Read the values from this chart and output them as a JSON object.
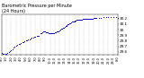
{
  "title": "Barometric Pressure per Minute\n(24 Hours)",
  "title_fontsize": 3.5,
  "dot_color": "#0000cc",
  "dot_size": 0.5,
  "background_color": "#ffffff",
  "grid_color": "#999999",
  "xlim": [
    0,
    1440
  ],
  "ylim": [
    29.55,
    30.28
  ],
  "yticks": [
    29.6,
    29.7,
    29.8,
    29.9,
    30.0,
    30.1,
    30.2
  ],
  "ytick_labels": [
    "29.6",
    "29.7",
    "29.8",
    "29.9",
    "30",
    "30.1",
    "30.2"
  ],
  "ytick_fontsize": 3.0,
  "xtick_fontsize": 2.5,
  "x_minutes": [
    0,
    60,
    120,
    180,
    240,
    300,
    360,
    420,
    480,
    540,
    600,
    660,
    720,
    780,
    840,
    900,
    960,
    1020,
    1080,
    1140,
    1200,
    1260,
    1320,
    1380,
    1440
  ],
  "xtick_labels": [
    "0:0",
    "1:0",
    "2:0",
    "3:0",
    "4:0",
    "5:0",
    "6:0",
    "7:0",
    "8:0",
    "9:0",
    "10:0",
    "11:0",
    "12:0",
    "13:0",
    "14:0",
    "15:0",
    "16:0",
    "17:0",
    "18:0",
    "19:0",
    "20:0",
    "21:0",
    "22:0",
    "23:0",
    "0:0"
  ],
  "pressure_data": [
    [
      0,
      29.58
    ],
    [
      15,
      29.57
    ],
    [
      30,
      29.57
    ],
    [
      45,
      29.57
    ],
    [
      60,
      29.57
    ],
    [
      75,
      29.58
    ],
    [
      90,
      29.59
    ],
    [
      105,
      29.61
    ],
    [
      120,
      29.63
    ],
    [
      135,
      29.65
    ],
    [
      150,
      29.67
    ],
    [
      165,
      29.69
    ],
    [
      180,
      29.71
    ],
    [
      195,
      29.73
    ],
    [
      210,
      29.74
    ],
    [
      225,
      29.75
    ],
    [
      240,
      29.76
    ],
    [
      255,
      29.77
    ],
    [
      270,
      29.78
    ],
    [
      285,
      29.79
    ],
    [
      300,
      29.8
    ],
    [
      315,
      29.81
    ],
    [
      330,
      29.82
    ],
    [
      345,
      29.83
    ],
    [
      360,
      29.84
    ],
    [
      375,
      29.85
    ],
    [
      390,
      29.86
    ],
    [
      405,
      29.87
    ],
    [
      420,
      29.87
    ],
    [
      435,
      29.88
    ],
    [
      450,
      29.88
    ],
    [
      465,
      29.89
    ],
    [
      480,
      29.93
    ],
    [
      490,
      29.94
    ],
    [
      500,
      29.95
    ],
    [
      510,
      29.96
    ],
    [
      520,
      29.96
    ],
    [
      530,
      29.96
    ],
    [
      540,
      29.96
    ],
    [
      550,
      29.95
    ],
    [
      560,
      29.95
    ],
    [
      570,
      29.95
    ],
    [
      580,
      29.94
    ],
    [
      590,
      29.94
    ],
    [
      600,
      29.94
    ],
    [
      610,
      29.94
    ],
    [
      620,
      29.94
    ],
    [
      630,
      29.94
    ],
    [
      640,
      29.94
    ],
    [
      650,
      29.94
    ],
    [
      660,
      29.95
    ],
    [
      670,
      29.95
    ],
    [
      680,
      29.96
    ],
    [
      690,
      29.97
    ],
    [
      700,
      29.97
    ],
    [
      710,
      29.98
    ],
    [
      720,
      29.99
    ],
    [
      730,
      30.0
    ],
    [
      740,
      30.01
    ],
    [
      750,
      30.02
    ],
    [
      760,
      30.03
    ],
    [
      770,
      30.04
    ],
    [
      780,
      30.05
    ],
    [
      790,
      30.06
    ],
    [
      800,
      30.07
    ],
    [
      810,
      30.08
    ],
    [
      820,
      30.09
    ],
    [
      830,
      30.1
    ],
    [
      840,
      30.11
    ],
    [
      850,
      30.12
    ],
    [
      860,
      30.13
    ],
    [
      870,
      30.14
    ],
    [
      880,
      30.14
    ],
    [
      890,
      30.15
    ],
    [
      900,
      30.15
    ],
    [
      910,
      30.16
    ],
    [
      920,
      30.16
    ],
    [
      930,
      30.17
    ],
    [
      940,
      30.17
    ],
    [
      950,
      30.17
    ],
    [
      960,
      30.18
    ],
    [
      970,
      30.18
    ],
    [
      980,
      30.18
    ],
    [
      990,
      30.18
    ],
    [
      1000,
      30.19
    ],
    [
      1010,
      30.19
    ],
    [
      1020,
      30.19
    ],
    [
      1030,
      30.19
    ],
    [
      1040,
      30.19
    ],
    [
      1050,
      30.2
    ],
    [
      1060,
      30.2
    ],
    [
      1070,
      30.2
    ],
    [
      1080,
      30.2
    ],
    [
      1090,
      30.2
    ],
    [
      1100,
      30.2
    ],
    [
      1110,
      30.2
    ],
    [
      1120,
      30.2
    ],
    [
      1130,
      30.2
    ],
    [
      1140,
      30.21
    ],
    [
      1150,
      30.21
    ],
    [
      1160,
      30.21
    ],
    [
      1170,
      30.21
    ],
    [
      1200,
      30.21
    ],
    [
      1230,
      30.21
    ],
    [
      1260,
      30.22
    ],
    [
      1290,
      30.22
    ],
    [
      1320,
      30.23
    ],
    [
      1350,
      30.23
    ],
    [
      1380,
      30.22
    ],
    [
      1410,
      30.22
    ],
    [
      1440,
      30.21
    ]
  ]
}
